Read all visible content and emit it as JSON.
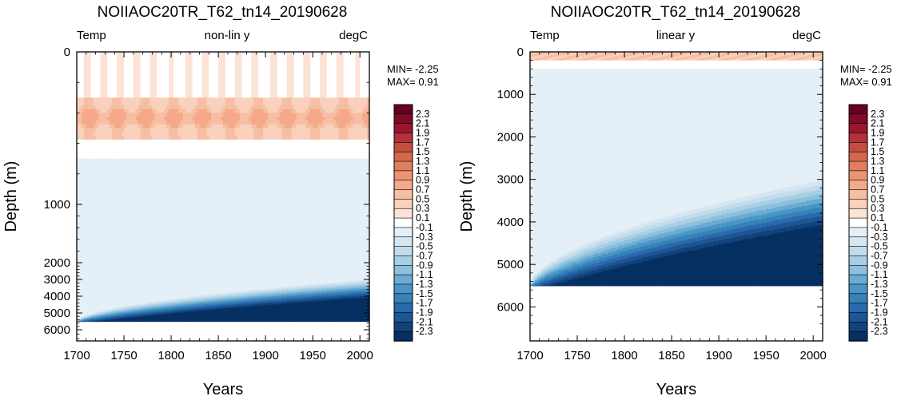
{
  "colors": {
    "levels": [
      "#053061",
      "#11427c",
      "#1e5595",
      "#286aab",
      "#3781b8",
      "#4895c6",
      "#6aabd1",
      "#8cc0dd",
      "#a8cfe5",
      "#c2dcec",
      "#d5e6f1",
      "#e5eff7",
      "#ffffff",
      "#fbe3d6",
      "#f9d1bc",
      "#f6bea2",
      "#f4a988",
      "#eb9474",
      "#e07f60",
      "#d4674e",
      "#c44d40",
      "#b2313a",
      "#9a1530",
      "#7e0b27",
      "#670022"
    ],
    "frame": "#000000"
  },
  "chart_data": [
    {
      "type": "heatmap",
      "title": "NOIIAOC20TR_T62_tn14_20190628",
      "subtitle_left": "Temp",
      "subtitle_center": "non-lin y",
      "subtitle_right": "degC",
      "xlabel": "Years",
      "ylabel": "Depth (m)",
      "xlim": [
        1700,
        2010
      ],
      "ylim": [
        0,
        6500
      ],
      "y_scale": "non-linear (reversed, depth increasing downward)",
      "xticks": [
        1700,
        1750,
        1800,
        1850,
        1900,
        1950,
        2000
      ],
      "yticks": [
        0,
        1000,
        2000,
        3000,
        4000,
        5000,
        6000
      ],
      "y_tick_labels": [
        "0",
        "1000",
        "2000",
        "3000",
        "4000",
        "5000",
        "6000"
      ],
      "min_text": "MIN= -2.25",
      "max_text": "MAX=  0.91",
      "ocean_bottom": 5500
    },
    {
      "type": "heatmap",
      "title": "NOIIAOC20TR_T62_tn14_20190628",
      "subtitle_left": "Temp",
      "subtitle_center": "linear y",
      "subtitle_right": "degC",
      "xlabel": "Years",
      "ylabel": "Depth (m)",
      "xlim": [
        1700,
        2010
      ],
      "ylim": [
        0,
        6800
      ],
      "y_scale": "linear (reversed, depth increasing downward)",
      "xticks": [
        1700,
        1750,
        1800,
        1850,
        1900,
        1950,
        2000
      ],
      "yticks": [
        0,
        1000,
        2000,
        3000,
        4000,
        5000,
        6000
      ],
      "y_tick_labels": [
        "0",
        "1000",
        "2000",
        "3000",
        "4000",
        "5000",
        "6000"
      ],
      "min_text": "MIN= -2.25",
      "max_text": "MAX=  0.91",
      "ocean_bottom": 5500
    }
  ],
  "colorbar": {
    "labels": [
      "2.3",
      "2.1",
      "1.9",
      "1.7",
      "1.5",
      "1.3",
      "1.1",
      "0.9",
      "0.7",
      "0.5",
      "0.3",
      "0.1",
      "-0.1",
      "-0.3",
      "-0.5",
      "-0.7",
      "-0.9",
      "-1.1",
      "-1.3",
      "-1.5",
      "-1.7",
      "-1.9",
      "-2.1",
      "-2.3"
    ]
  }
}
